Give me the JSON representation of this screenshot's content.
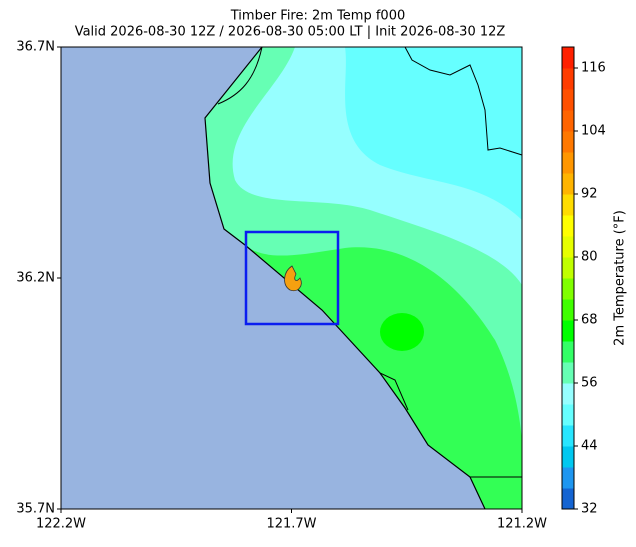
{
  "title": "Timber Fire: 2m Temp f000",
  "subtitle": "Valid 2026-08-30 12Z / 2026-08-30 05:00 LT | Init 2026-08-30 12Z",
  "map": {
    "xlim": [
      -122.2,
      -121.2
    ],
    "ylim": [
      35.7,
      36.7
    ],
    "xticks": [
      {
        "value": -122.2,
        "label": "122.2W"
      },
      {
        "value": -121.7,
        "label": "121.7W"
      },
      {
        "value": -121.2,
        "label": "121.2W"
      }
    ],
    "yticks": [
      {
        "value": 35.7,
        "label": "35.7N"
      },
      {
        "value": 36.2,
        "label": "36.2N"
      },
      {
        "value": 36.7,
        "label": "36.7N"
      }
    ]
  },
  "colorbar": {
    "label": "2m Temperature (°F)",
    "lim": [
      32,
      120
    ],
    "ticks": [
      32,
      44,
      56,
      68,
      80,
      92,
      104,
      116
    ],
    "colors": [
      "#1464d2",
      "#1e96f0",
      "#00c8f0",
      "#28e6ff",
      "#66ffff",
      "#96ffff",
      "#66ffb4",
      "#33ff66",
      "#00ff00",
      "#40ff00",
      "#80ff00",
      "#c0ff00",
      "#e6ff00",
      "#ffff00",
      "#ffdc00",
      "#ffb400",
      "#ff9600",
      "#ff7800",
      "#ff6400",
      "#ff5000",
      "#ff3c00",
      "#ff2000"
    ]
  }
}
